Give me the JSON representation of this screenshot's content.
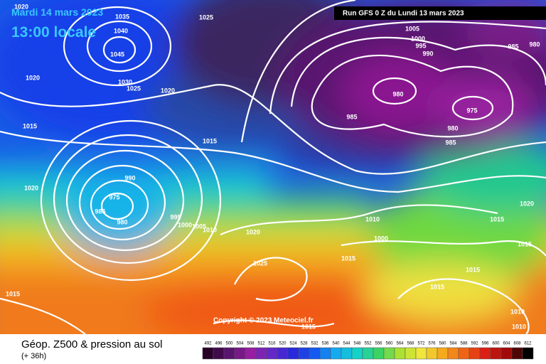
{
  "header": {
    "date": "Mardi 14 mars 2023",
    "time": "13:00 locale",
    "run": "Run GFS 0 Z du Lundi 13 mars 2023"
  },
  "copyright": "Copyright © 2023 Meteociel.fr",
  "isobar_labels": [
    1035,
    1040,
    1045,
    1020,
    1020,
    1030,
    1025,
    1020,
    1015,
    1025,
    1005,
    1000,
    995,
    990,
    985,
    980,
    980,
    975,
    985,
    980,
    985,
    1015,
    1020,
    990,
    975,
    985,
    980,
    995,
    1000,
    1005,
    1010,
    1020,
    1010,
    1000,
    1015,
    1025,
    1015,
    1020,
    1015,
    1015,
    1015,
    1015,
    1010,
    1010,
    1015
  ],
  "legend": {
    "title": "Géop. Z500 & pression au sol",
    "subtitle": "(+ 36h)",
    "scale": [
      492,
      496,
      500,
      504,
      508,
      512,
      516,
      520,
      524,
      528,
      532,
      536,
      540,
      544,
      548,
      552,
      556,
      560,
      564,
      568,
      572,
      576,
      580,
      584,
      588,
      592,
      596,
      600,
      604,
      608,
      612
    ]
  }
}
